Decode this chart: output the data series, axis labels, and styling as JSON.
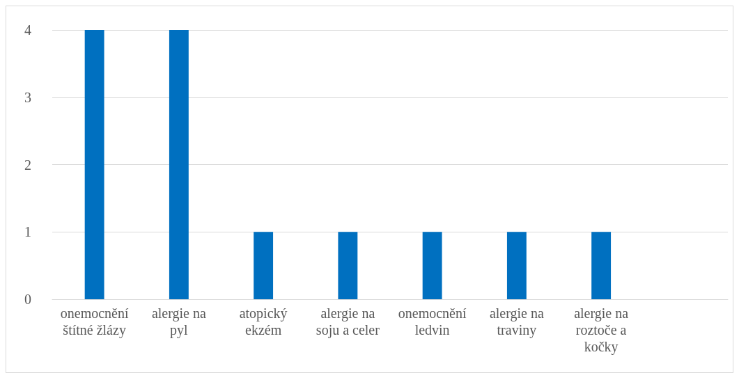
{
  "chart_data": {
    "type": "bar",
    "categories": [
      "onemocnění štítné žlázy",
      "alergie na pyl",
      "atopický ekzém",
      "alergie na soju a celer",
      "onemocnění ledvin",
      "alergie na traviny",
      "alergie na roztoče a kočky",
      null
    ],
    "values": [
      4,
      4,
      1,
      1,
      1,
      1,
      1,
      null
    ],
    "color": "#0070c0",
    "ylim": [
      0,
      4
    ],
    "yticks": [
      0,
      1,
      2,
      3,
      4
    ],
    "grid": "y"
  }
}
